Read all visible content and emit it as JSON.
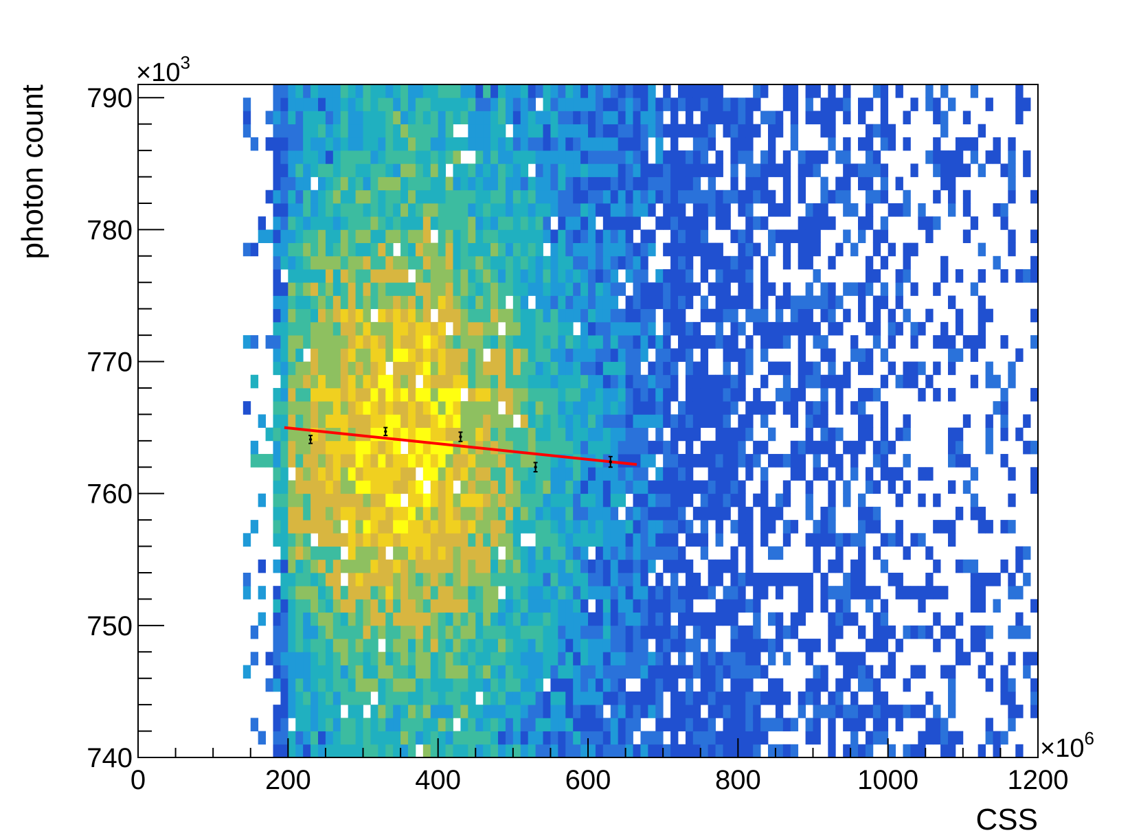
{
  "chart_data": {
    "type": "heatmap",
    "xlabel": "CSS",
    "ylabel": "photon count",
    "x_multiplier": {
      "base": "×10",
      "exp": "6"
    },
    "y_multiplier": {
      "base": "×10",
      "exp": "3"
    },
    "xlim": [
      0,
      1200
    ],
    "ylim": [
      740,
      791
    ],
    "x_ticks": [
      0,
      200,
      400,
      600,
      800,
      1000,
      1200
    ],
    "y_ticks": [
      740,
      750,
      760,
      770,
      780,
      790
    ],
    "heatmap": {
      "x_bins": 120,
      "y_bins": 51,
      "x_range": [
        0,
        1200
      ],
      "y_range": [
        740,
        791
      ],
      "occupied_x_range": [
        145,
        1200
      ],
      "hot_region": {
        "x_center": 340,
        "y_center": 764,
        "x_sigma": 110,
        "y_sigma": 4.5
      },
      "colors": [
        "#2050d0",
        "#2a72da",
        "#1f9ad8",
        "#20b0c0",
        "#3cbca0",
        "#8ec060",
        "#d8b640",
        "#f0d020",
        "#ffff10"
      ]
    },
    "profile_points": [
      {
        "x": 230,
        "y": 764.1,
        "err": 0.3
      },
      {
        "x": 330,
        "y": 764.7,
        "err": 0.3
      },
      {
        "x": 430,
        "y": 764.3,
        "err": 0.35
      },
      {
        "x": 530,
        "y": 762.0,
        "err": 0.35
      },
      {
        "x": 630,
        "y": 762.4,
        "err": 0.4
      }
    ],
    "fit_line": {
      "x": [
        195,
        665
      ],
      "y": [
        765.0,
        762.2
      ],
      "color": "#ff0000"
    },
    "grid": false,
    "legend": "none"
  }
}
